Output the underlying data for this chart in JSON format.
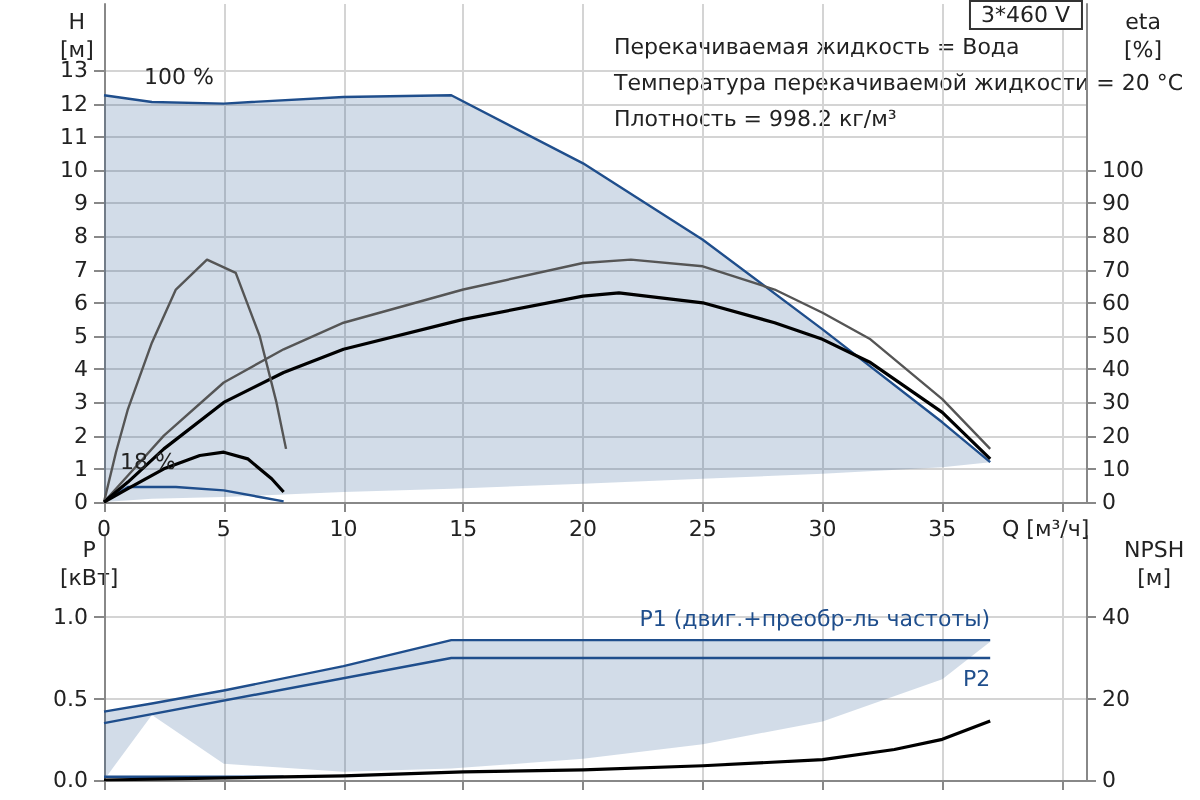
{
  "chart_data": [
    {
      "type": "line",
      "title": "3*460 V",
      "xlabel": "Q [м³/ч]",
      "ylabel": "H [м]",
      "y2label": "eta [%]",
      "annotations": [
        "Перекачиваемая жидкость = Вода",
        "Температура перекачиваемой жидкости = 20 °C",
        "Плотность = 998.2 кг/м³"
      ],
      "xlim": [
        0,
        41
      ],
      "xticks": [
        0,
        5,
        10,
        15,
        20,
        25,
        30,
        35,
        {
          "value": 40,
          "label": null
        }
      ],
      "ylim": [
        0,
        15
      ],
      "yticks": [
        0,
        1,
        2,
        3,
        4,
        5,
        6,
        7,
        8,
        9,
        10,
        11,
        12,
        13
      ],
      "y2lim": [
        0,
        150
      ],
      "y2ticks": [
        0,
        10,
        20,
        30,
        40,
        50,
        60,
        70,
        80,
        90,
        100
      ],
      "grid": true,
      "marker": "none",
      "line_style": "solid",
      "series": [
        {
          "name": "100 %",
          "color": "#1f4e8c",
          "x": [
            0,
            2,
            5,
            10,
            14.5,
            20,
            25,
            30,
            35,
            37
          ],
          "values": [
            12.25,
            12.05,
            12.0,
            12.2,
            12.25,
            10.2,
            7.9,
            5.2,
            2.4,
            1.2
          ],
          "upper": [
            12.25,
            12.05,
            12.0,
            12.2,
            12.25,
            10.2,
            7.9,
            5.2,
            2.4,
            1.2
          ],
          "lower": [
            0,
            0.1,
            0.15,
            0.3,
            0.4,
            0.55,
            0.7,
            0.85,
            1.05,
            1.2
          ]
        },
        {
          "name": "18 %",
          "color": "#1f4e8c",
          "x": [
            0,
            1,
            3,
            5,
            6.5,
            7.5
          ],
          "values": [
            0,
            0.45,
            0.45,
            0.35,
            0.15,
            0.02
          ]
        },
        {
          "color": "#555555",
          "axis": "y2",
          "x": [
            0,
            1,
            2.5,
            5,
            7.5,
            10,
            15,
            20,
            22,
            25,
            28,
            30,
            32,
            35,
            37
          ],
          "values": [
            0,
            8,
            20,
            36,
            46,
            54,
            64,
            72,
            73,
            71,
            64,
            57,
            49,
            31,
            16
          ]
        },
        {
          "color": "#000000",
          "axis": "y2",
          "x": [
            0,
            1,
            2.5,
            5,
            7.5,
            10,
            15,
            20,
            21.5,
            25,
            28,
            30,
            32,
            35,
            37
          ],
          "values": [
            0,
            6,
            16,
            30,
            39,
            46,
            55,
            62,
            63,
            60,
            54,
            49,
            42,
            27,
            13
          ]
        },
        {
          "color": "#555555",
          "axis": "y2",
          "x": [
            0,
            0.5,
            1,
            2,
            3,
            4.3,
            5.5,
            6.5,
            7.2,
            7.6
          ],
          "values": [
            0,
            15,
            28,
            48,
            64,
            73,
            69,
            50,
            30,
            16
          ]
        },
        {
          "color": "#000000",
          "axis": "y2",
          "x": [
            0,
            1,
            2.5,
            4,
            5,
            6,
            7,
            7.5
          ],
          "values": [
            0,
            4,
            10,
            14,
            15,
            13,
            7,
            3
          ]
        }
      ]
    },
    {
      "type": "line",
      "ylabel": "P [кВт]",
      "y2label": "NPSH [м]",
      "xlim": [
        0,
        41
      ],
      "xticks": [
        0,
        5,
        10,
        15,
        20,
        25,
        30,
        35,
        {
          "value": 40,
          "label": null
        }
      ],
      "ylim": [
        0,
        1.5
      ],
      "yticks": [
        {
          "value": 0,
          "label": "0.0"
        },
        {
          "value": 0.5,
          "label": "0.5"
        },
        {
          "value": 1,
          "label": "1.0"
        }
      ],
      "y2lim": [
        0,
        60
      ],
      "y2ticks": [
        0,
        20,
        40
      ],
      "grid": true,
      "marker": "none",
      "line_style": "solid",
      "tick_labels": "y",
      "series": [
        {
          "name": "P1 (двиг.+преобр-ль частоты)",
          "color": "#1f4e8c",
          "x": [
            0,
            2,
            5,
            10,
            14.5,
            20,
            25,
            30,
            35,
            37
          ],
          "values": [
            0.42,
            0.47,
            0.55,
            0.7,
            0.86,
            0.86,
            0.86,
            0.86,
            0.86,
            0.86
          ],
          "upper": [
            0.42,
            0.47,
            0.55,
            0.7,
            0.86,
            0.86,
            0.86,
            0.86,
            0.86,
            0.86
          ],
          "lower": [
            0,
            0.4,
            0.1,
            0.05,
            0.07,
            0.13,
            0.22,
            0.36,
            0.62,
            0.85
          ]
        },
        {
          "name": "P2",
          "color": "#1f4e8c",
          "x": [
            0,
            14.5,
            37
          ],
          "values": [
            0.35,
            0.75,
            0.75
          ]
        },
        {
          "color": "#1f4e8c",
          "x": [
            0,
            7.5
          ],
          "values": [
            0.02,
            0.02
          ]
        },
        {
          "color": "#000000",
          "axis": "y2",
          "x": [
            0,
            10,
            15,
            20,
            25,
            30,
            33,
            35,
            37
          ],
          "values": [
            0,
            1,
            2,
            2.5,
            3.5,
            5,
            7.5,
            10,
            14.5
          ]
        }
      ]
    }
  ]
}
